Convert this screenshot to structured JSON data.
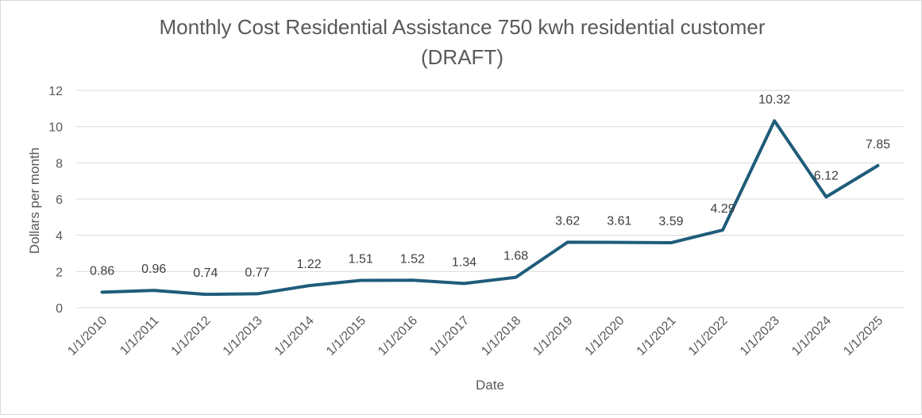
{
  "chart_data": {
    "type": "line",
    "title_line1": "Monthly Cost Residential Assistance 750 kwh residential customer",
    "title_line2": "(DRAFT)",
    "xlabel": "Date",
    "ylabel": "Dollars per month",
    "ylim": [
      0,
      12
    ],
    "yticks": [
      "0",
      "2",
      "4",
      "6",
      "8",
      "10",
      "12"
    ],
    "grid": true,
    "legend": "none",
    "categories": [
      "1/1/2010",
      "1/1/2011",
      "1/1/2012",
      "1/1/2013",
      "1/1/2014",
      "1/1/2015",
      "1/1/2016",
      "1/1/2017",
      "1/1/2018",
      "1/1/2019",
      "1/1/2020",
      "1/1/2021",
      "1/1/2022",
      "1/1/2023",
      "1/1/2024",
      "1/1/2025"
    ],
    "series": [
      {
        "color": "#1f5c7a",
        "values": [
          0.86,
          0.96,
          0.74,
          0.77,
          1.22,
          1.51,
          1.52,
          1.34,
          1.68,
          3.62,
          3.61,
          3.59,
          4.29,
          10.32,
          6.12,
          7.85
        ],
        "labels": [
          "0.86",
          "0.96",
          "0.74",
          "0.77",
          "1.22",
          "1.51",
          "1.52",
          "1.34",
          "1.68",
          "3.62",
          "3.61",
          "3.59",
          "4.29",
          "10.32",
          "6.12",
          "7.85"
        ]
      }
    ]
  }
}
